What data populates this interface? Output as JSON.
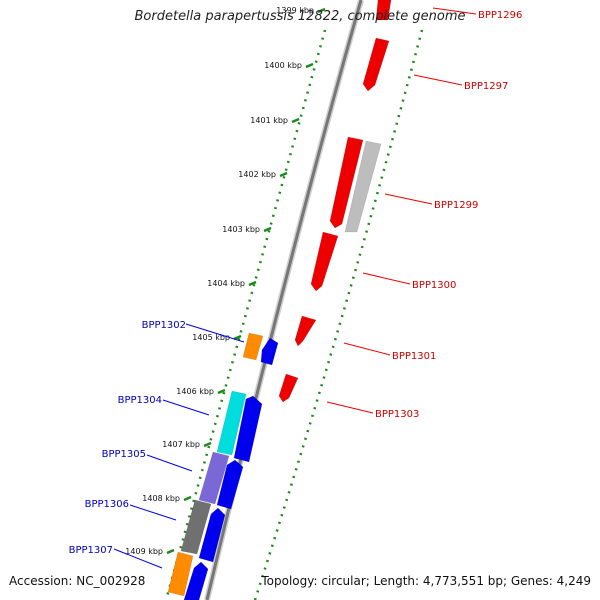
{
  "title": "Bordetella parapertussis 12822, complete genome",
  "footer": {
    "accession": "Accession: NC_002928",
    "summary": "Topology: circular; Length: 4,773,551 bp; Genes: 4,249"
  },
  "colors": {
    "red": "#ee0000",
    "red_label": "#cc0000",
    "blue": "#0000ee",
    "blue_label": "#0000bb",
    "orange": "#ff8c00",
    "cyan": "#00dddd",
    "purple": "#7a68d6",
    "darkgray": "#707070",
    "lightgray": "#bdbdbd",
    "track": "#1a8a1a",
    "backbone": "#777777"
  },
  "ticks": [
    {
      "id": "1399",
      "label": "1399 kbp"
    },
    {
      "id": "1400",
      "label": "1400 kbp"
    },
    {
      "id": "1401",
      "label": "1401 kbp"
    },
    {
      "id": "1402",
      "label": "1402 kbp"
    },
    {
      "id": "1403",
      "label": "1403 kbp"
    },
    {
      "id": "1404",
      "label": "1404 kbp"
    },
    {
      "id": "1405",
      "label": "1405 kbp"
    },
    {
      "id": "1406",
      "label": "1406 kbp"
    },
    {
      "id": "1407",
      "label": "1407 kbp"
    },
    {
      "id": "1408",
      "label": "1408 kbp"
    },
    {
      "id": "1409",
      "label": "1409 kbp"
    }
  ],
  "gene_labels": [
    {
      "id": "BPP1296",
      "text": "BPP1296",
      "strand": "forward"
    },
    {
      "id": "BPP1297",
      "text": "BPP1297",
      "strand": "forward"
    },
    {
      "id": "BPP1299",
      "text": "BPP1299",
      "strand": "forward"
    },
    {
      "id": "BPP1300",
      "text": "BPP1300",
      "strand": "forward"
    },
    {
      "id": "BPP1301",
      "text": "BPP1301",
      "strand": "forward"
    },
    {
      "id": "BPP1303",
      "text": "BPP1303",
      "strand": "forward"
    },
    {
      "id": "BPP1302",
      "text": "BPP1302",
      "strand": "reverse"
    },
    {
      "id": "BPP1304",
      "text": "BPP1304",
      "strand": "reverse"
    },
    {
      "id": "BPP1305",
      "text": "BPP1305",
      "strand": "reverse"
    },
    {
      "id": "BPP1306",
      "text": "BPP1306",
      "strand": "reverse"
    },
    {
      "id": "BPP1307",
      "text": "BPP1307",
      "strand": "reverse"
    }
  ]
}
